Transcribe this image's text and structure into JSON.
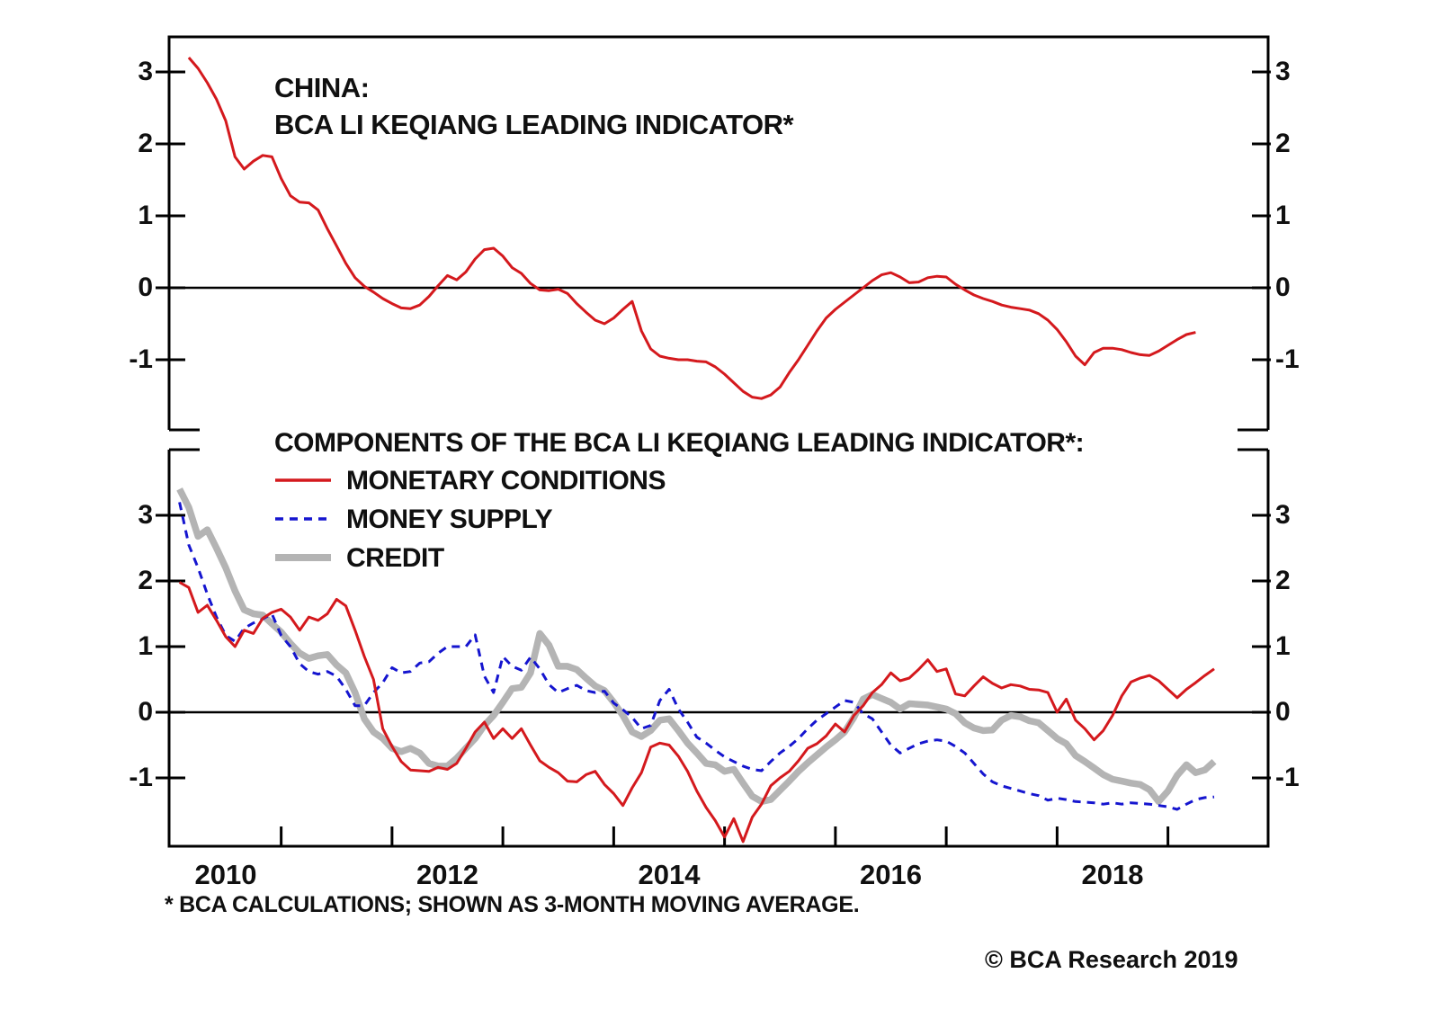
{
  "colors": {
    "background": "#ffffff",
    "frame": "#000000",
    "text": "#101010",
    "red": "#d4191d",
    "blue": "#1515cf",
    "gray": "#b4b4b4"
  },
  "top_chart": {
    "title_line1": "CHINA:",
    "title_line2": "BCA LI KEQIANG LEADING INDICATOR*"
  },
  "legend": {
    "title": "COMPONENTS OF THE BCA LI KEQIANG LEADING INDICATOR*:",
    "items": [
      {
        "label": "MONETARY CONDITIONS",
        "style": "solid-red"
      },
      {
        "label": "MONEY SUPPLY",
        "style": "dashed-blue"
      },
      {
        "label": "CREDIT",
        "style": "thick-gray"
      }
    ]
  },
  "footnote": "* BCA CALCULATIONS;  SHOWN AS 3-MONTH MOVING AVERAGE.",
  "copyright": "© BCA Research 2019",
  "axes": {
    "x_year_labels": [
      2010,
      2012,
      2014,
      2016,
      2018
    ],
    "x_minor_ticks": [
      2010.5,
      2011.5,
      2012.5,
      2013.5,
      2014.5,
      2015.5,
      2016.5,
      2017.5,
      2018.5
    ],
    "y_tick_values": [
      3,
      2,
      1,
      0,
      -1
    ]
  },
  "chart_data": [
    {
      "type": "line",
      "panel": "top",
      "title": "CHINA: BCA LI KEQIANG LEADING INDICATOR*",
      "xlabel": "",
      "ylabel": "",
      "xlim": [
        2009.48,
        2019.4
      ],
      "ylim": [
        -1.98,
        3.5
      ],
      "yticks": [
        -1,
        0,
        1,
        2,
        3
      ],
      "zero_line": true,
      "grid": false,
      "x_start": 2009.6667,
      "x_step": 0.083333,
      "series": [
        {
          "name": "BCA Li Keqiang Leading Indicator",
          "color_key": "red",
          "dash": "solid",
          "width": 3,
          "values": [
            3.2,
            3.05,
            2.85,
            2.62,
            2.32,
            1.82,
            1.65,
            1.76,
            1.84,
            1.82,
            1.52,
            1.28,
            1.19,
            1.18,
            1.08,
            0.82,
            0.58,
            0.34,
            0.14,
            0.02,
            -0.06,
            -0.15,
            -0.22,
            -0.28,
            -0.29,
            -0.24,
            -0.12,
            0.03,
            0.17,
            0.11,
            0.22,
            0.4,
            0.53,
            0.55,
            0.44,
            0.28,
            0.2,
            0.06,
            -0.03,
            -0.04,
            -0.02,
            -0.08,
            -0.22,
            -0.34,
            -0.45,
            -0.5,
            -0.42,
            -0.3,
            -0.19,
            -0.6,
            -0.85,
            -0.95,
            -0.98,
            -1.0,
            -1.0,
            -1.02,
            -1.03,
            -1.1,
            -1.2,
            -1.32,
            -1.44,
            -1.52,
            -1.54,
            -1.49,
            -1.38,
            -1.18,
            -1.0,
            -0.8,
            -0.6,
            -0.42,
            -0.3,
            -0.2,
            -0.1,
            0.0,
            0.1,
            0.18,
            0.21,
            0.15,
            0.07,
            0.08,
            0.14,
            0.16,
            0.15,
            0.05,
            -0.03,
            -0.1,
            -0.15,
            -0.19,
            -0.24,
            -0.27,
            -0.29,
            -0.31,
            -0.36,
            -0.45,
            -0.58,
            -0.75,
            -0.95,
            -1.07,
            -0.9,
            -0.84,
            -0.84,
            -0.86,
            -0.9,
            -0.93,
            -0.94,
            -0.88,
            -0.8,
            -0.72,
            -0.65,
            -0.62
          ]
        }
      ]
    },
    {
      "type": "line",
      "panel": "bottom",
      "title": "COMPONENTS OF THE BCA LI KEQIANG LEADING INDICATOR*:",
      "xlabel": "",
      "ylabel": "",
      "xlim": [
        2009.48,
        2019.4
      ],
      "ylim": [
        -2.05,
        4.0
      ],
      "yticks": [
        -1,
        0,
        1,
        2,
        3
      ],
      "zero_line": true,
      "grid": false,
      "x_start": 2009.5833,
      "x_step": 0.083333,
      "series": [
        {
          "name": "CREDIT",
          "color_key": "gray",
          "dash": "solid",
          "width": 7.5,
          "values": [
            3.4,
            3.12,
            2.68,
            2.78,
            2.5,
            2.2,
            1.85,
            1.56,
            1.5,
            1.48,
            1.35,
            1.22,
            1.05,
            0.9,
            0.82,
            0.86,
            0.88,
            0.72,
            0.6,
            0.3,
            -0.1,
            -0.3,
            -0.4,
            -0.55,
            -0.6,
            -0.55,
            -0.62,
            -0.78,
            -0.82,
            -0.82,
            -0.7,
            -0.55,
            -0.4,
            -0.2,
            -0.05,
            0.15,
            0.36,
            0.38,
            0.6,
            1.2,
            1.02,
            0.7,
            0.7,
            0.65,
            0.52,
            0.4,
            0.33,
            0.15,
            -0.05,
            -0.3,
            -0.37,
            -0.28,
            -0.12,
            -0.1,
            -0.28,
            -0.47,
            -0.62,
            -0.78,
            -0.8,
            -0.9,
            -0.87,
            -1.08,
            -1.28,
            -1.36,
            -1.33,
            -1.19,
            -1.05,
            -0.9,
            -0.77,
            -0.65,
            -0.53,
            -0.42,
            -0.3,
            -0.08,
            0.2,
            0.27,
            0.21,
            0.15,
            0.05,
            0.13,
            0.12,
            0.11,
            0.08,
            0.05,
            -0.02,
            -0.16,
            -0.24,
            -0.28,
            -0.27,
            -0.12,
            -0.05,
            -0.07,
            -0.13,
            -0.16,
            -0.28,
            -0.4,
            -0.48,
            -0.66,
            -0.75,
            -0.85,
            -0.95,
            -1.02,
            -1.05,
            -1.08,
            -1.1,
            -1.18,
            -1.36,
            -1.2,
            -0.96,
            -0.8,
            -0.92,
            -0.88,
            -0.75
          ]
        },
        {
          "name": "MONEY SUPPLY",
          "color_key": "blue",
          "dash": "dashed",
          "width": 3,
          "values": [
            3.2,
            2.55,
            2.2,
            1.8,
            1.45,
            1.17,
            1.08,
            1.28,
            1.36,
            1.42,
            1.5,
            1.17,
            1.0,
            0.74,
            0.62,
            0.58,
            0.62,
            0.55,
            0.35,
            0.1,
            0.1,
            0.3,
            0.45,
            0.68,
            0.6,
            0.62,
            0.75,
            0.77,
            0.9,
            1.0,
            1.0,
            1.0,
            1.18,
            0.55,
            0.3,
            0.85,
            0.7,
            0.64,
            0.84,
            0.66,
            0.42,
            0.3,
            0.36,
            0.41,
            0.33,
            0.3,
            0.32,
            0.14,
            0.04,
            -0.08,
            -0.25,
            -0.2,
            0.18,
            0.35,
            0.05,
            -0.15,
            -0.38,
            -0.47,
            -0.58,
            -0.68,
            -0.75,
            -0.82,
            -0.87,
            -0.89,
            -0.75,
            -0.62,
            -0.52,
            -0.4,
            -0.25,
            -0.12,
            -0.02,
            0.08,
            0.18,
            0.15,
            -0.02,
            -0.1,
            -0.3,
            -0.5,
            -0.62,
            -0.55,
            -0.48,
            -0.44,
            -0.42,
            -0.44,
            -0.52,
            -0.62,
            -0.78,
            -0.94,
            -1.06,
            -1.12,
            -1.16,
            -1.2,
            -1.24,
            -1.27,
            -1.34,
            -1.31,
            -1.33,
            -1.36,
            -1.37,
            -1.38,
            -1.4,
            -1.38,
            -1.4,
            -1.38,
            -1.39,
            -1.4,
            -1.42,
            -1.44,
            -1.48,
            -1.4,
            -1.33,
            -1.3,
            -1.29
          ]
        },
        {
          "name": "MONETARY CONDITIONS",
          "color_key": "red",
          "dash": "solid",
          "width": 3,
          "values": [
            1.98,
            1.9,
            1.52,
            1.63,
            1.4,
            1.15,
            1.0,
            1.25,
            1.2,
            1.43,
            1.52,
            1.57,
            1.45,
            1.25,
            1.45,
            1.4,
            1.5,
            1.72,
            1.62,
            1.25,
            0.85,
            0.5,
            -0.25,
            -0.52,
            -0.75,
            -0.88,
            -0.89,
            -0.9,
            -0.84,
            -0.87,
            -0.78,
            -0.55,
            -0.3,
            -0.15,
            -0.4,
            -0.25,
            -0.4,
            -0.25,
            -0.5,
            -0.74,
            -0.84,
            -0.92,
            -1.05,
            -1.06,
            -0.95,
            -0.9,
            -1.1,
            -1.24,
            -1.42,
            -1.15,
            -0.92,
            -0.53,
            -0.47,
            -0.5,
            -0.67,
            -0.9,
            -1.2,
            -1.45,
            -1.65,
            -1.9,
            -1.62,
            -1.97,
            -1.6,
            -1.4,
            -1.12,
            -1.0,
            -0.9,
            -0.74,
            -0.55,
            -0.48,
            -0.36,
            -0.18,
            -0.3,
            -0.05,
            0.1,
            0.3,
            0.42,
            0.6,
            0.48,
            0.52,
            0.65,
            0.8,
            0.62,
            0.66,
            0.28,
            0.25,
            0.4,
            0.54,
            0.44,
            0.37,
            0.42,
            0.4,
            0.35,
            0.34,
            0.3,
            0.0,
            0.2,
            -0.12,
            -0.25,
            -0.42,
            -0.28,
            -0.05,
            0.25,
            0.46,
            0.52,
            0.56,
            0.48,
            0.35,
            0.22,
            0.35,
            0.45,
            0.56,
            0.66
          ]
        }
      ]
    }
  ]
}
